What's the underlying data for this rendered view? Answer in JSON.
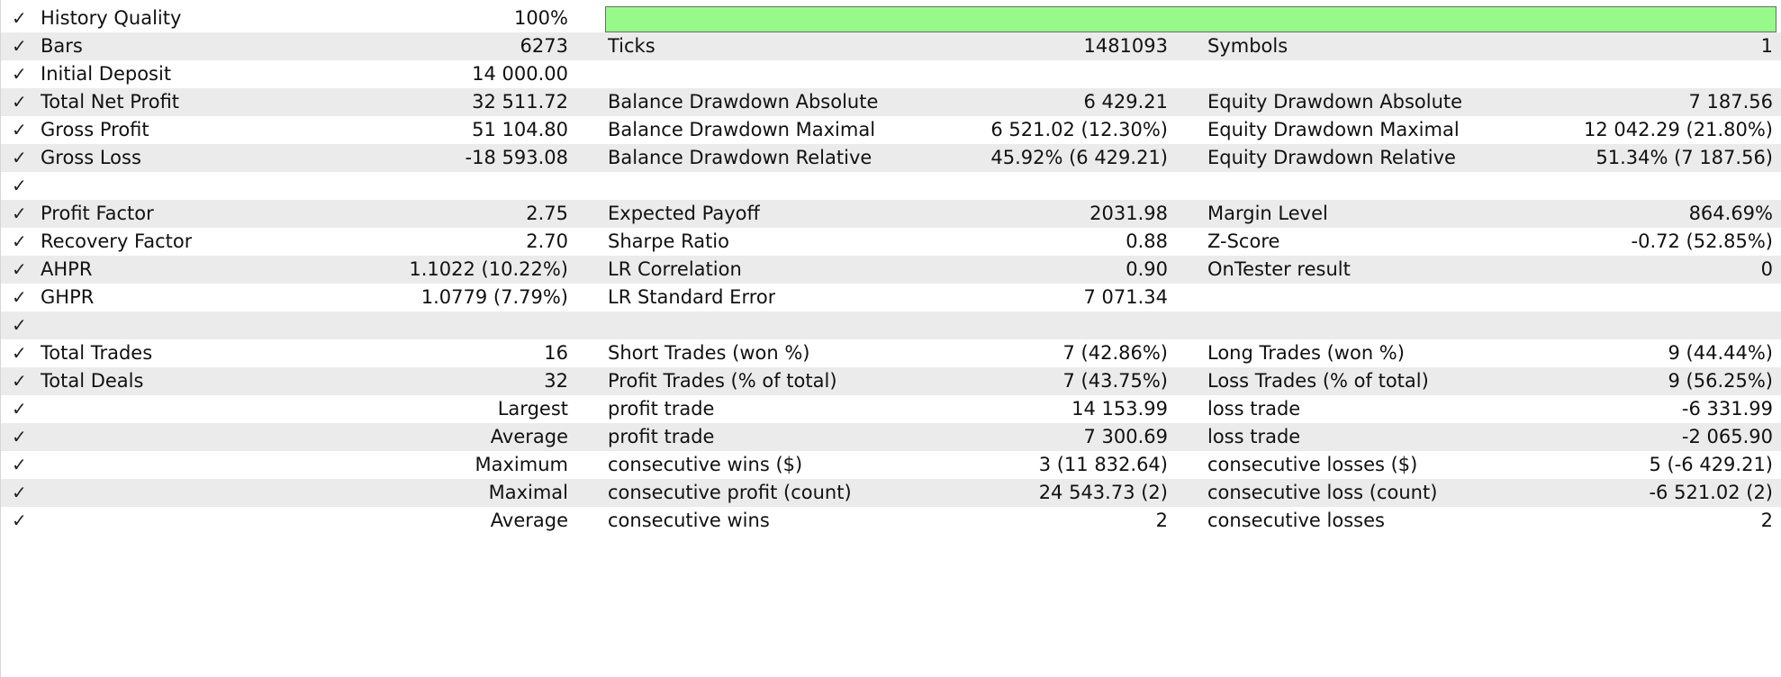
{
  "check_glyph": "✓",
  "history_quality": {
    "label": "History Quality",
    "value": "100%",
    "fraction": 1.0,
    "bar_color": "#98f98b"
  },
  "rows": [
    {
      "c1": "Bars",
      "v1": "6273",
      "c2": "Ticks",
      "v2": "1481093",
      "c3": "Symbols",
      "v3": "1"
    },
    {
      "c1": "Initial Deposit",
      "v1": "14 000.00",
      "c2": "",
      "v2": "",
      "c3": "",
      "v3": ""
    },
    {
      "c1": "Total Net Profit",
      "v1": "32 511.72",
      "c2": "Balance Drawdown Absolute",
      "v2": "6 429.21",
      "c3": "Equity Drawdown Absolute",
      "v3": "7 187.56"
    },
    {
      "c1": "Gross Profit",
      "v1": "51 104.80",
      "c2": "Balance Drawdown Maximal",
      "v2": "6 521.02 (12.30%)",
      "c3": "Equity Drawdown Maximal",
      "v3": "12 042.29 (21.80%)"
    },
    {
      "c1": "Gross Loss",
      "v1": "-18 593.08",
      "c2": "Balance Drawdown Relative",
      "v2": "45.92% (6 429.21)",
      "c3": "Equity Drawdown Relative",
      "v3": "51.34% (7 187.56)"
    },
    {
      "c1": "",
      "v1": "",
      "c2": "",
      "v2": "",
      "c3": "",
      "v3": ""
    },
    {
      "c1": "Profit Factor",
      "v1": "2.75",
      "c2": "Expected Payoff",
      "v2": "2031.98",
      "c3": "Margin Level",
      "v3": "864.69%"
    },
    {
      "c1": "Recovery Factor",
      "v1": "2.70",
      "c2": "Sharpe Ratio",
      "v2": "0.88",
      "c3": "Z-Score",
      "v3": "-0.72 (52.85%)"
    },
    {
      "c1": "AHPR",
      "v1": "1.1022 (10.22%)",
      "c2": "LR Correlation",
      "v2": "0.90",
      "c3": "OnTester result",
      "v3": "0"
    },
    {
      "c1": "GHPR",
      "v1": "1.0779 (7.79%)",
      "c2": "LR Standard Error",
      "v2": "7 071.34",
      "c3": "",
      "v3": ""
    },
    {
      "c1": "",
      "v1": "",
      "c2": "",
      "v2": "",
      "c3": "",
      "v3": ""
    },
    {
      "c1": "Total Trades",
      "v1": "16",
      "c2": "Short Trades (won %)",
      "v2": "7 (42.86%)",
      "c3": "Long Trades (won %)",
      "v3": "9 (44.44%)"
    },
    {
      "c1": "Total Deals",
      "v1": "32",
      "c2": "Profit Trades (% of total)",
      "v2": "7 (43.75%)",
      "c3": "Loss Trades (% of total)",
      "v3": "9 (56.25%)"
    },
    {
      "c1": "",
      "v1": "Largest",
      "c2": "profit trade",
      "v2": "14 153.99",
      "c3": "loss trade",
      "v3": "-6 331.99"
    },
    {
      "c1": "",
      "v1": "Average",
      "c2": "profit trade",
      "v2": "7 300.69",
      "c3": "loss trade",
      "v3": "-2 065.90"
    },
    {
      "c1": "",
      "v1": "Maximum",
      "c2": "consecutive wins ($)",
      "v2": "3 (11 832.64)",
      "c3": "consecutive losses ($)",
      "v3": "5 (-6 429.21)"
    },
    {
      "c1": "",
      "v1": "Maximal",
      "c2": "consecutive profit (count)",
      "v2": "24 543.73 (2)",
      "c3": "consecutive loss (count)",
      "v3": "-6 521.02 (2)"
    },
    {
      "c1": "",
      "v1": "Average",
      "c2": "consecutive wins",
      "v2": "2",
      "c3": "consecutive losses",
      "v3": "2"
    }
  ]
}
